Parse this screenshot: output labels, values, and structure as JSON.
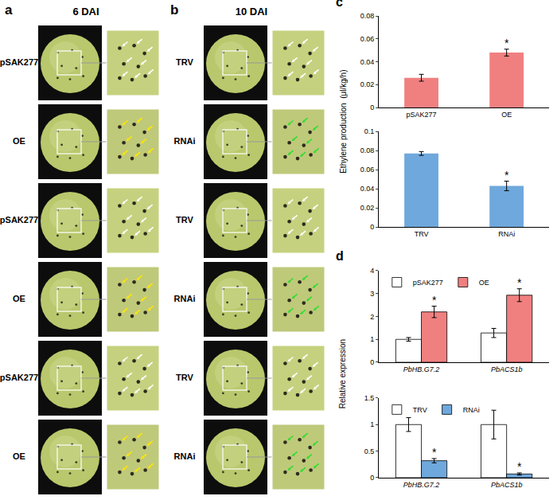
{
  "panels": [
    {
      "label": "a",
      "title": "6 DAI",
      "rows": [
        "pSAK277",
        "OE",
        "pSAK277",
        "OE",
        "pSAK277",
        "OE"
      ]
    },
    {
      "label": "b",
      "title": "10 DAI",
      "rows": [
        "TRV",
        "RNAi",
        "TRV",
        "RNAi",
        "TRV",
        "RNAi"
      ]
    }
  ],
  "chart_data": [
    {
      "panel": "c",
      "type": "bar",
      "y_label": "Ethylene production  (μl/kg/h)",
      "categories": [
        "pSAK277",
        "OE"
      ],
      "values": [
        0.026,
        0.048
      ],
      "errors": [
        0.003,
        0.003
      ],
      "color": "#f08080",
      "ylim": [
        0,
        0.08
      ],
      "yticks": [
        0,
        0.02,
        0.04,
        0.06,
        0.08
      ],
      "annotations": [
        {
          "text": "*",
          "category": "OE"
        }
      ]
    },
    {
      "panel": "c",
      "type": "bar",
      "categories": [
        "TRV",
        "RNAi"
      ],
      "values": [
        0.077,
        0.043
      ],
      "errors": [
        0.002,
        0.005
      ],
      "color": "#6fa8dc",
      "ylim": [
        0,
        0.1
      ],
      "yticks": [
        0,
        0.02,
        0.04,
        0.06,
        0.08,
        0.1
      ],
      "annotations": [
        {
          "text": "*",
          "category": "RNAi"
        }
      ]
    },
    {
      "panel": "d",
      "type": "bar",
      "y_label": "Relative expression",
      "categories": [
        "PbHB.G7.2",
        "PbACS1b"
      ],
      "series": [
        {
          "name": "pSAK277",
          "color": "#ffffff",
          "values": [
            1.0,
            1.28
          ],
          "errors": [
            0.08,
            0.2
          ]
        },
        {
          "name": "OE",
          "color": "#f08080",
          "values": [
            2.2,
            2.93
          ],
          "errors": [
            0.25,
            0.28
          ]
        }
      ],
      "ylim": [
        0,
        4
      ],
      "yticks": [
        0,
        1,
        2,
        3,
        4
      ],
      "legend": "top-left",
      "annotations": [
        {
          "text": "*",
          "category": "PbHB.G7.2",
          "series": "OE"
        },
        {
          "text": "*",
          "category": "PbACS1b",
          "series": "OE"
        }
      ]
    },
    {
      "panel": "d",
      "type": "bar",
      "categories": [
        "PbHB.G7.2",
        "PbACS1b"
      ],
      "series": [
        {
          "name": "TRV",
          "color": "#ffffff",
          "values": [
            1.0,
            1.0
          ],
          "errors": [
            0.13,
            0.27
          ]
        },
        {
          "name": "RNAi",
          "color": "#6fa8dc",
          "values": [
            0.32,
            0.07
          ],
          "errors": [
            0.04,
            0.02
          ]
        }
      ],
      "ylim": [
        0,
        1.5
      ],
      "yticks": [
        0,
        0.5,
        1,
        1.5
      ],
      "legend": "top-left",
      "annotations": [
        {
          "text": "*",
          "category": "PbHB.G7.2",
          "series": "RNAi"
        },
        {
          "text": "*",
          "category": "PbACS1b",
          "series": "RNAi"
        }
      ]
    }
  ]
}
